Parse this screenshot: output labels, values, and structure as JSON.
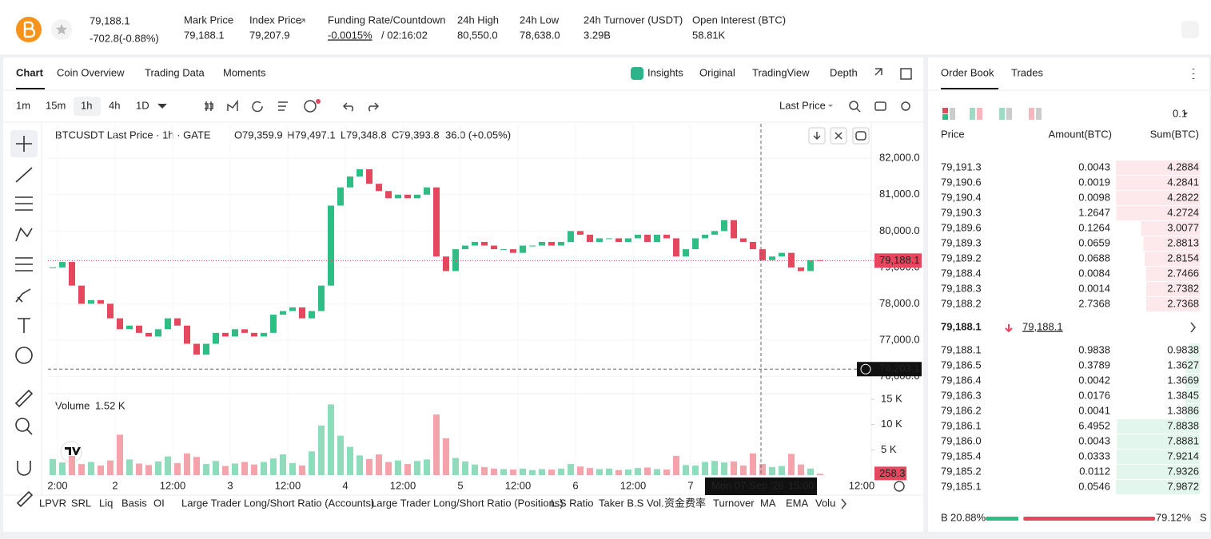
{
  "header": {
    "price": "79,188.1",
    "change": "-702.8(-0.88%)",
    "stats": [
      {
        "label": "Mark Price",
        "value": "79,188.1"
      },
      {
        "label": "Index Price",
        "value": "79,207.9"
      },
      {
        "label": "Funding Rate/Countdown",
        "value": "-0.0015%",
        "countdown": "/ 02:16:02"
      },
      {
        "label": "24h High",
        "value": "80,550.0"
      },
      {
        "label": "24h Low",
        "value": "78,638.0"
      },
      {
        "label": "24h Turnover (USDT)",
        "value": "3.29B"
      },
      {
        "label": "Open Interest (BTC)",
        "value": "58.81K"
      }
    ]
  },
  "chart_tabs": [
    "Chart",
    "Coin Overview",
    "Trading Data",
    "Moments"
  ],
  "view_tabs": [
    "Insights",
    "Original",
    "TradingView",
    "Depth"
  ],
  "intervals": [
    "1m",
    "15m",
    "1h",
    "4h",
    "1D"
  ],
  "price_type": "Last Price",
  "legend": {
    "symbol": "BTCUSDT Last Price · 1h · GATE",
    "o_label": "O",
    "o": "79,359.9",
    "h_label": "H",
    "h": "79,497.1",
    "l_label": "L",
    "l": "79,348.8",
    "c_label": "C",
    "c": "79,393.8",
    "change": "36.0 (+0.05%)"
  },
  "volume_legend": {
    "label": "Volume",
    "value": "1.52 K"
  },
  "price_chart": {
    "type": "candlestick",
    "closes": [
      79000,
      79150,
      78500,
      78000,
      78100,
      78000,
      77600,
      77300,
      77400,
      77200,
      77100,
      77300,
      77600,
      77400,
      76900,
      76600,
      76900,
      77200,
      77100,
      77300,
      77200,
      77100,
      77200,
      77700,
      77800,
      77900,
      77600,
      77800,
      78500,
      80700,
      81200,
      81500,
      81700,
      81300,
      81100,
      80900,
      81000,
      80900,
      81000,
      81200,
      79300,
      78900,
      79500,
      79600,
      79700,
      79600,
      79500,
      79500,
      79400,
      79600,
      79600,
      79700,
      79600,
      79700,
      80000,
      79900,
      79700,
      79800,
      79800,
      79700,
      79800,
      79900,
      79700,
      79900,
      79800,
      79300,
      79500,
      79800,
      79900,
      80000,
      80300,
      79800,
      79700,
      79500,
      79200,
      79300,
      79400,
      79000,
      78900,
      79200,
      79188.1
    ],
    "volumes": [
      3200,
      2500,
      3800,
      2200,
      2600,
      1900,
      2900,
      8000,
      3100,
      2300,
      2000,
      2700,
      3700,
      2400,
      4300,
      3600,
      2200,
      2800,
      1800,
      2300,
      2600,
      2100,
      2600,
      3300,
      4100,
      2400,
      1900,
      4700,
      9800,
      14000,
      7800,
      5600,
      3900,
      3200,
      4100,
      2600,
      2900,
      2200,
      2800,
      3100,
      12000,
      7300,
      3400,
      2700,
      2100,
      1600,
      1300,
      1200,
      1100,
      1300,
      1000,
      1200,
      1100,
      1300,
      2200,
      1700,
      1400,
      1200,
      1300,
      1000,
      1100,
      1400,
      1500,
      1200,
      1100,
      3800,
      2000,
      1900,
      2600,
      2800,
      2500,
      2700,
      1900,
      4300,
      2200,
      1600,
      1800,
      4200,
      2100,
      1300,
      258.3
    ],
    "ylim": [
      75550,
      82950
    ],
    "yticks": [
      {
        "value": 82000,
        "label": "82,000.0"
      },
      {
        "value": 81000,
        "label": "81,000.0"
      },
      {
        "value": 80000,
        "label": "80,000.0"
      },
      {
        "value": 79000,
        "label": "79,000.0"
      },
      {
        "value": 78000,
        "label": "78,000.0"
      },
      {
        "value": 77000,
        "label": "77,000.0"
      },
      {
        "value": 76000,
        "label": "76,000.0"
      }
    ],
    "vol_ylim": [
      0,
      15800
    ],
    "vol_yticks": [
      {
        "value": 15000,
        "label": "15 K"
      },
      {
        "value": 10000,
        "label": "10 K"
      },
      {
        "value": 5000,
        "label": "5 K"
      }
    ],
    "crosshair_price": {
      "value": 76203.1,
      "label": "76,203.1"
    },
    "crosshair_date": "Mon 07 Sep '26",
    "crosshair_time": "15:00",
    "time_labels": [
      "2:00",
      "2",
      "12:00",
      "3",
      "12:00",
      "4",
      "12:00",
      "5",
      "12:00",
      "6",
      "12:00",
      "7"
    ],
    "time_label_end": "12:00"
  },
  "indicators": [
    "LPVR",
    "SRL",
    "Liq",
    "Basis",
    "OI",
    "Large Trader Long/Short Ratio (Accounts)",
    "Large Trader Long/Short Ratio (Positions)",
    "L.S Ratio",
    "Taker B.S Vol.",
    "资金费率",
    "Turnover",
    "MA",
    "EMA",
    "Volu"
  ],
  "order_book": {
    "tabs": [
      "Order Book",
      "Trades"
    ],
    "precision": "0.1",
    "columns": [
      "Price",
      "Amount(BTC)",
      "Sum(BTC)"
    ],
    "asks": [
      [
        "79,191.3",
        0.0043,
        4.2884
      ],
      [
        "79,190.6",
        0.0019,
        4.2841
      ],
      [
        "79,190.4",
        0.0098,
        4.2822
      ],
      [
        "79,190.3",
        1.2647,
        4.2724
      ],
      [
        "79,189.6",
        0.1264,
        3.0077
      ],
      [
        "79,189.3",
        0.0659,
        2.8813
      ],
      [
        "79,189.2",
        0.0688,
        2.8154
      ],
      [
        "79,188.4",
        0.0084,
        2.7466
      ],
      [
        "79,188.3",
        0.0014,
        2.7382
      ],
      [
        "79,188.2",
        2.7368,
        2.7368
      ]
    ],
    "mid_price": "79,188.1",
    "mark_price": "79,188.1",
    "bids": [
      [
        "79,188.1",
        0.9838,
        0.9838
      ],
      [
        "79,186.5",
        0.3789,
        1.3627
      ],
      [
        "79,186.4",
        0.0042,
        1.3669
      ],
      [
        "79,186.3",
        0.0176,
        1.3845
      ],
      [
        "79,186.2",
        0.0041,
        1.3886
      ],
      [
        "79,186.1",
        6.4952,
        7.8838
      ],
      [
        "79,186.0",
        0.0043,
        7.8881
      ],
      [
        "79,185.4",
        0.0333,
        7.9214
      ],
      [
        "79,185.2",
        0.0112,
        7.9326
      ],
      [
        "79,185.1",
        0.0546,
        7.9872
      ]
    ],
    "buy_label": "B",
    "buy_ratio": {
      "value": 20.88,
      "label": "20.88%"
    },
    "sell_ratio": {
      "value": 79.12,
      "label": "79.12%"
    },
    "sell_label": "S"
  }
}
